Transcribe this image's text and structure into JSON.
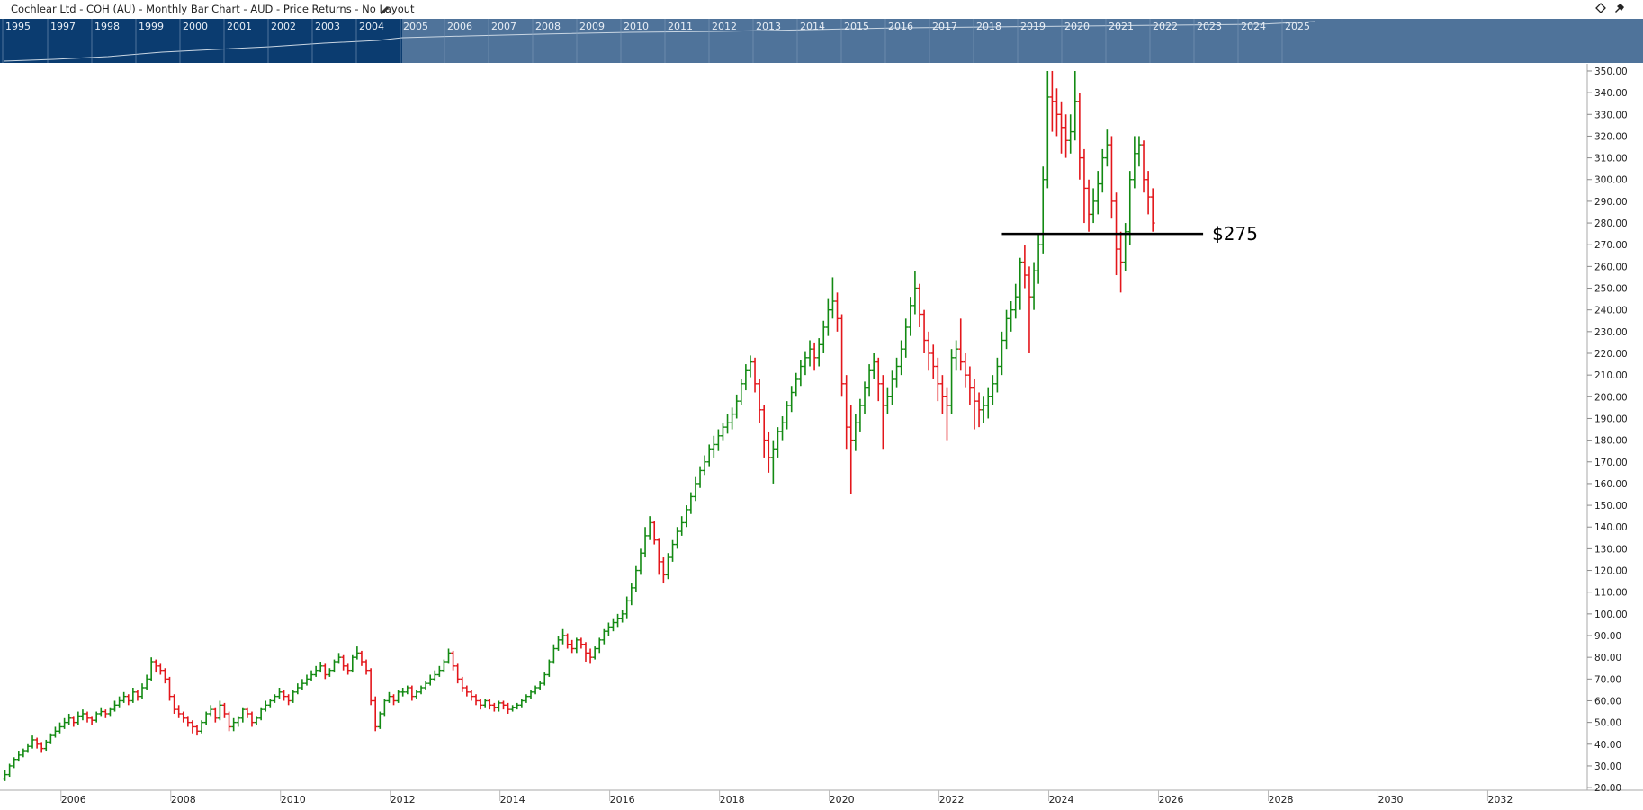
{
  "chart_data": {
    "type": "ohlc",
    "title": "Cochlear Ltd - COH (AU) - Monthly Bar Chart - AUD - Price Returns - No Layout",
    "open": [
      24,
      26,
      30,
      33,
      35,
      37,
      39,
      42,
      40,
      38,
      41,
      44,
      46,
      48,
      50,
      52,
      50,
      53,
      54,
      52,
      51,
      54,
      55,
      54,
      56,
      58,
      60,
      62,
      60,
      64,
      62,
      66,
      70,
      78,
      76,
      74,
      70,
      62,
      56,
      54,
      52,
      50,
      48,
      46,
      50,
      54,
      56,
      52,
      58,
      54,
      48,
      50,
      52,
      56,
      54,
      50,
      52,
      56,
      58,
      60,
      62,
      64,
      62,
      60,
      64,
      66,
      68,
      70,
      72,
      74,
      76,
      72,
      74,
      78,
      80,
      76,
      74,
      80,
      82,
      78,
      74,
      60,
      48,
      54,
      60,
      62,
      60,
      64,
      64,
      66,
      62,
      64,
      66,
      68,
      70,
      72,
      74,
      78,
      82,
      76,
      70,
      66,
      64,
      62,
      60,
      58,
      60,
      58,
      57,
      59,
      58,
      56,
      57,
      58,
      60,
      62,
      64,
      66,
      68,
      72,
      78,
      84,
      88,
      90,
      86,
      84,
      88,
      86,
      82,
      80,
      84,
      88,
      92,
      94,
      96,
      98,
      100,
      106,
      112,
      120,
      128,
      136,
      142,
      134,
      124,
      118,
      126,
      132,
      138,
      142,
      148,
      154,
      160,
      166,
      170,
      176,
      178,
      182,
      186,
      188,
      192,
      198,
      206,
      212,
      216,
      206,
      194,
      180,
      172,
      176,
      184,
      188,
      196,
      202,
      208,
      214,
      218,
      222,
      218,
      224,
      232,
      240,
      244,
      236,
      206,
      186,
      180,
      188,
      196,
      204,
      212,
      216,
      206,
      196,
      200,
      208,
      214,
      222,
      232,
      242,
      250,
      238,
      226,
      220,
      214,
      206,
      200,
      196,
      218,
      222,
      216,
      210,
      204,
      198,
      194,
      196,
      200,
      206,
      214,
      226,
      236,
      240,
      246,
      262,
      256,
      246,
      258,
      270,
      300,
      338,
      336,
      330,
      324,
      318,
      322,
      336,
      310,
      296,
      284,
      290,
      298,
      310,
      316,
      290,
      268,
      262,
      276,
      300,
      312,
      316,
      300,
      292
    ],
    "high": [
      28,
      31,
      34,
      37,
      38,
      40,
      44,
      43,
      41,
      42,
      45,
      48,
      50,
      52,
      54,
      53,
      55,
      56,
      55,
      53,
      55,
      57,
      56,
      57,
      60,
      62,
      64,
      63,
      66,
      65,
      68,
      72,
      80,
      79,
      77,
      75,
      71,
      63,
      58,
      55,
      53,
      51,
      49,
      51,
      55,
      58,
      57,
      60,
      59,
      55,
      52,
      53,
      57,
      57,
      55,
      53,
      57,
      60,
      61,
      63,
      66,
      65,
      63,
      65,
      68,
      70,
      72,
      74,
      76,
      78,
      77,
      75,
      79,
      82,
      81,
      77,
      81,
      85,
      83,
      79,
      75,
      62,
      55,
      61,
      64,
      63,
      65,
      66,
      67,
      67,
      65,
      67,
      69,
      72,
      74,
      76,
      79,
      84,
      83,
      77,
      71,
      67,
      65,
      63,
      61,
      61,
      61,
      59,
      60,
      60,
      59,
      58,
      59,
      61,
      63,
      65,
      67,
      69,
      73,
      79,
      86,
      90,
      93,
      91,
      88,
      89,
      89,
      87,
      84,
      85,
      89,
      93,
      96,
      98,
      100,
      102,
      108,
      114,
      122,
      130,
      140,
      145,
      143,
      135,
      126,
      128,
      134,
      140,
      145,
      150,
      156,
      163,
      168,
      173,
      178,
      182,
      185,
      188,
      192,
      195,
      201,
      208,
      215,
      219,
      218,
      208,
      196,
      184,
      180,
      186,
      191,
      198,
      205,
      211,
      217,
      221,
      226,
      225,
      227,
      235,
      245,
      255,
      248,
      238,
      210,
      196,
      192,
      199,
      207,
      215,
      220,
      218,
      210,
      204,
      212,
      218,
      226,
      236,
      246,
      258,
      252,
      240,
      230,
      224,
      218,
      210,
      204,
      222,
      226,
      236,
      220,
      214,
      208,
      202,
      200,
      204,
      210,
      218,
      230,
      240,
      244,
      252,
      264,
      270,
      260,
      262,
      275,
      306,
      350,
      350,
      342,
      336,
      330,
      330,
      350,
      340,
      314,
      300,
      296,
      304,
      314,
      323,
      320,
      294,
      276,
      280,
      304,
      320,
      320,
      318,
      304,
      296
    ],
    "low": [
      23,
      25,
      29,
      32,
      34,
      36,
      38,
      38,
      36,
      37,
      40,
      43,
      45,
      47,
      49,
      48,
      49,
      51,
      50,
      49,
      50,
      53,
      52,
      53,
      55,
      57,
      59,
      58,
      59,
      60,
      61,
      65,
      69,
      73,
      72,
      68,
      60,
      54,
      52,
      50,
      48,
      45,
      44,
      45,
      49,
      53,
      50,
      51,
      52,
      46,
      46,
      48,
      50,
      52,
      48,
      49,
      51,
      55,
      57,
      59,
      61,
      60,
      58,
      59,
      63,
      65,
      67,
      69,
      71,
      73,
      70,
      71,
      73,
      77,
      74,
      72,
      73,
      79,
      76,
      72,
      58,
      46,
      47,
      53,
      59,
      58,
      59,
      62,
      63,
      60,
      61,
      63,
      65,
      67,
      69,
      71,
      73,
      77,
      74,
      68,
      64,
      62,
      60,
      58,
      56,
      57,
      56,
      55,
      55,
      56,
      54,
      55,
      56,
      57,
      59,
      61,
      63,
      65,
      67,
      71,
      77,
      83,
      86,
      84,
      82,
      82,
      84,
      78,
      77,
      79,
      82,
      86,
      90,
      92,
      94,
      96,
      98,
      104,
      110,
      118,
      126,
      134,
      132,
      118,
      114,
      116,
      124,
      130,
      136,
      140,
      146,
      152,
      158,
      164,
      168,
      172,
      175,
      180,
      183,
      185,
      190,
      196,
      203,
      209,
      202,
      188,
      172,
      165,
      160,
      172,
      180,
      185,
      193,
      200,
      205,
      210,
      214,
      212,
      214,
      220,
      228,
      236,
      230,
      200,
      176,
      155,
      175,
      184,
      192,
      200,
      208,
      198,
      176,
      192,
      196,
      204,
      210,
      218,
      228,
      238,
      232,
      220,
      212,
      208,
      198,
      192,
      180,
      192,
      212,
      212,
      204,
      196,
      185,
      186,
      188,
      190,
      196,
      202,
      210,
      222,
      230,
      236,
      240,
      250,
      220,
      240,
      252,
      266,
      296,
      322,
      320,
      312,
      310,
      312,
      318,
      300,
      280,
      276,
      280,
      284,
      294,
      306,
      282,
      256,
      248,
      258,
      270,
      296,
      306,
      294,
      284,
      276
    ],
    "close": [
      26,
      30,
      33,
      35,
      37,
      39,
      42,
      40,
      38,
      41,
      44,
      46,
      48,
      50,
      52,
      50,
      53,
      54,
      52,
      51,
      54,
      55,
      54,
      56,
      58,
      60,
      62,
      60,
      64,
      62,
      66,
      70,
      78,
      76,
      74,
      70,
      62,
      56,
      54,
      52,
      50,
      48,
      46,
      50,
      54,
      56,
      52,
      58,
      54,
      48,
      50,
      52,
      56,
      54,
      50,
      52,
      56,
      58,
      60,
      62,
      64,
      62,
      60,
      64,
      66,
      68,
      70,
      72,
      74,
      76,
      72,
      74,
      78,
      80,
      76,
      74,
      80,
      82,
      78,
      74,
      60,
      48,
      54,
      60,
      62,
      60,
      64,
      64,
      66,
      62,
      64,
      66,
      68,
      70,
      72,
      74,
      78,
      82,
      76,
      70,
      66,
      64,
      62,
      60,
      58,
      60,
      58,
      57,
      59,
      58,
      56,
      57,
      58,
      60,
      62,
      64,
      66,
      68,
      72,
      78,
      84,
      88,
      90,
      86,
      84,
      88,
      86,
      82,
      80,
      84,
      88,
      92,
      94,
      96,
      98,
      100,
      106,
      112,
      120,
      128,
      136,
      142,
      134,
      124,
      118,
      126,
      132,
      138,
      142,
      148,
      154,
      160,
      166,
      170,
      176,
      178,
      182,
      186,
      188,
      192,
      198,
      206,
      212,
      216,
      206,
      194,
      180,
      172,
      176,
      184,
      188,
      196,
      202,
      208,
      214,
      218,
      222,
      218,
      224,
      232,
      240,
      244,
      236,
      206,
      186,
      180,
      188,
      196,
      204,
      212,
      216,
      206,
      196,
      200,
      208,
      214,
      222,
      232,
      242,
      250,
      238,
      226,
      220,
      214,
      206,
      200,
      196,
      218,
      222,
      216,
      210,
      204,
      198,
      194,
      196,
      200,
      206,
      214,
      226,
      236,
      240,
      246,
      262,
      256,
      246,
      258,
      270,
      300,
      338,
      336,
      330,
      324,
      318,
      322,
      336,
      310,
      296,
      284,
      290,
      298,
      310,
      316,
      290,
      268,
      262,
      276,
      300,
      312,
      316,
      300,
      292,
      280
    ],
    "up_color": "#138a13",
    "down_color": "#e3161b",
    "xlim": [
      -0.5,
      346
    ],
    "xticks": [
      {
        "value": 15,
        "label": "2006"
      },
      {
        "value": 39,
        "label": "2008"
      },
      {
        "value": 63,
        "label": "2010"
      },
      {
        "value": 87,
        "label": "2012"
      },
      {
        "value": 111,
        "label": "2014"
      },
      {
        "value": 135,
        "label": "2016"
      },
      {
        "value": 159,
        "label": "2018"
      },
      {
        "value": 183,
        "label": "2020"
      },
      {
        "value": 207,
        "label": "2022"
      },
      {
        "value": 231,
        "label": "2024"
      },
      {
        "value": 255,
        "label": "2026"
      },
      {
        "value": 279,
        "label": "2028"
      },
      {
        "value": 303,
        "label": "2030"
      },
      {
        "value": 327,
        "label": "2032"
      }
    ],
    "ylim": [
      18.8,
      353.3
    ],
    "yticks": [
      {
        "value": 20,
        "label": "20.00"
      },
      {
        "value": 30,
        "label": "30.00"
      },
      {
        "value": 40,
        "label": "40.00"
      },
      {
        "value": 50,
        "label": "50.00"
      },
      {
        "value": 60,
        "label": "60.00"
      },
      {
        "value": 70,
        "label": "70.00"
      },
      {
        "value": 80,
        "label": "80.00"
      },
      {
        "value": 90,
        "label": "90.00"
      },
      {
        "value": 100,
        "label": "100.00"
      },
      {
        "value": 110,
        "label": "110.00"
      },
      {
        "value": 120,
        "label": "120.00"
      },
      {
        "value": 130,
        "label": "130.00"
      },
      {
        "value": 140,
        "label": "140.00"
      },
      {
        "value": 150,
        "label": "150.00"
      },
      {
        "value": 160,
        "label": "160.00"
      },
      {
        "value": 170,
        "label": "170.00"
      },
      {
        "value": 180,
        "label": "180.00"
      },
      {
        "value": 190,
        "label": "190.00"
      },
      {
        "value": 200,
        "label": "200.00"
      },
      {
        "value": 210,
        "label": "210.00"
      },
      {
        "value": 220,
        "label": "220.00"
      },
      {
        "value": 230,
        "label": "230.00"
      },
      {
        "value": 240,
        "label": "240.00"
      },
      {
        "value": 250,
        "label": "250.00"
      },
      {
        "value": 260,
        "label": "260.00"
      },
      {
        "value": 270,
        "label": "270.00"
      },
      {
        "value": 280,
        "label": "280.00"
      },
      {
        "value": 290,
        "label": "290.00"
      },
      {
        "value": 300,
        "label": "300.00"
      },
      {
        "value": 310,
        "label": "310.00"
      },
      {
        "value": 320,
        "label": "320.00"
      },
      {
        "value": 330,
        "label": "330.00"
      },
      {
        "value": 340,
        "label": "340.00"
      },
      {
        "value": 350,
        "label": "350.00"
      }
    ],
    "annotations": [
      {
        "value": 275,
        "label": "$275",
        "x": [
          218,
          262
        ]
      }
    ],
    "navigator": {
      "years": [
        "1995",
        "1997",
        "1998",
        "1999",
        "2000",
        "2001",
        "2002",
        "2003",
        "2004",
        "2005",
        "2006",
        "2007",
        "2008",
        "2009",
        "2010",
        "2011",
        "2012",
        "2013",
        "2014",
        "2015",
        "2016",
        "2017",
        "2018",
        "2019",
        "2020",
        "2021",
        "2022",
        "2023",
        "2024",
        "2025"
      ]
    }
  }
}
